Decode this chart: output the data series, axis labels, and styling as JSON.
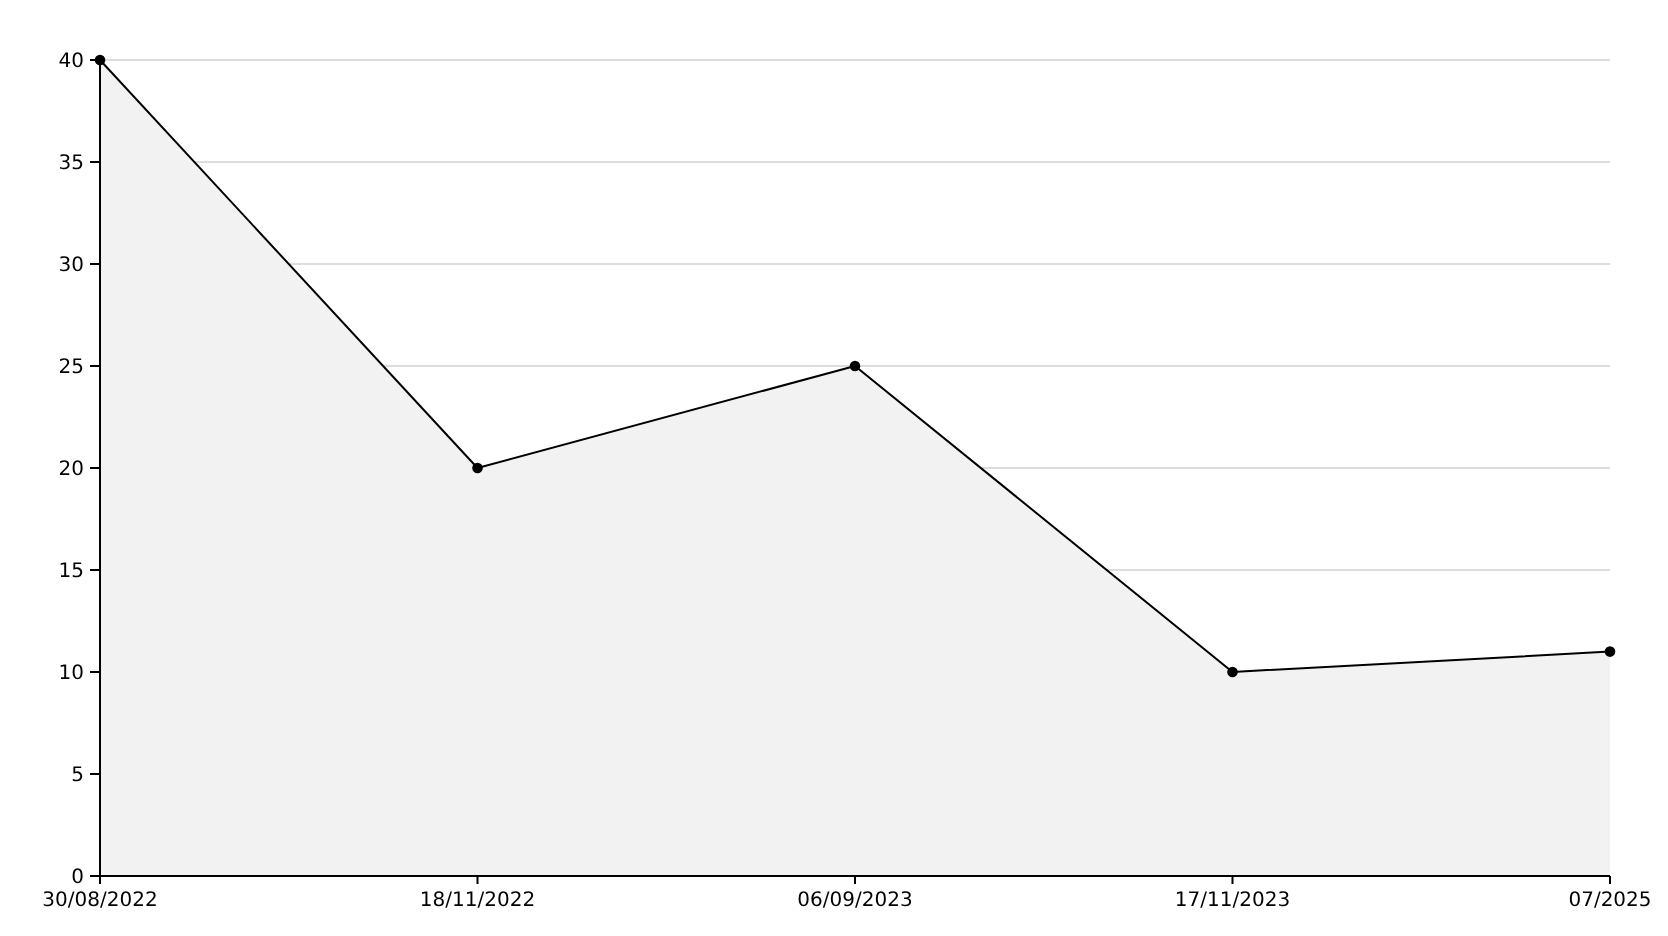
{
  "chart_data": {
    "type": "area",
    "categories": [
      "30/08/2022",
      "18/11/2022",
      "06/09/2023",
      "17/11/2023",
      "07/2025"
    ],
    "series": [
      {
        "color": "#000000",
        "values": [
          40,
          20,
          25,
          10,
          11
        ]
      }
    ],
    "ylim": [
      0,
      40
    ],
    "yticks": [
      0,
      5,
      10,
      15,
      20,
      25,
      30,
      35,
      40
    ],
    "grid": "y",
    "marker": "circle",
    "line_style": "solid"
  }
}
